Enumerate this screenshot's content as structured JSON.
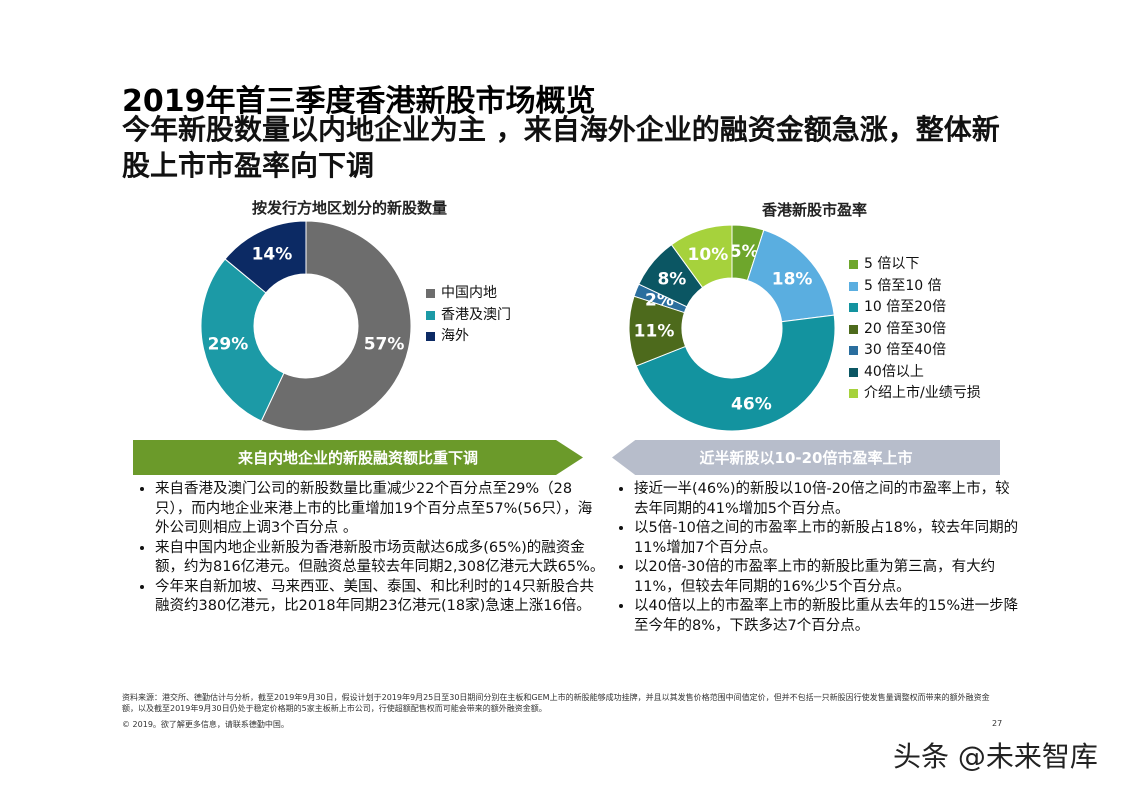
{
  "title": "2019年首三季度香港新股市场概览",
  "subtitle": "今年新股数量以内地企业为主 ，来自海外企业的融资金额急涨，整体新股上市市盈率向下调",
  "chart_data": [
    {
      "type": "pie",
      "donut": true,
      "title": "按发行方地区划分的新股数量",
      "legend_position": "right",
      "categories": [
        "中国内地",
        "香港及澳门",
        "海外"
      ],
      "values": [
        57,
        29,
        14
      ],
      "labels": [
        "57%",
        "29%",
        "14%"
      ],
      "colors": [
        "#6d6d6d",
        "#1c9aa6",
        "#0c2a64"
      ]
    },
    {
      "type": "pie",
      "donut": true,
      "title": "香港新股市盈率",
      "legend_position": "right",
      "categories": [
        "5 倍以下",
        "5 倍至10 倍",
        "10 倍至20倍",
        "20 倍至30倍",
        "30 倍至40倍",
        "40倍以上",
        "介绍上市/业绩亏损"
      ],
      "values": [
        5,
        18,
        46,
        11,
        2,
        8,
        10
      ],
      "labels": [
        "5%",
        "18%",
        "46%",
        "11%",
        "2%",
        "8%",
        "10%"
      ],
      "colors": [
        "#6ea62c",
        "#5aaee0",
        "#13939f",
        "#4d6a1c",
        "#2a6e9e",
        "#0b5663",
        "#a6d23c"
      ]
    }
  ],
  "banners": {
    "left": "来自内地企业的新股融资额比重下调",
    "right": "近半新股以10-20倍市盈率上市"
  },
  "left_bullets": [
    "来自香港及澳门公司的新股数量比重减少22个百分点至29%（28只），而内地企业来港上市的比重增加19个百分点至57%(56只），海外公司则相应上调3个百分点 。",
    "来自中国内地企业新股为香港新股市场贡献达6成多(65%)的融资金额，约为816亿港元。但融资总量较去年同期2,308亿港元大跌65%。",
    "今年来自新加坡、马来西亚、美国、泰国、和比利时的14只新股合共融资约380亿港元，比2018年同期23亿港元(18家)急速上涨16倍。"
  ],
  "right_bullets": [
    "接近一半(46%)的新股以10倍-20倍之间的市盈率上市，较去年同期的41%增加5个百分点。",
    "以5倍-10倍之间的市盈率上市的新股占18%，较去年同期的11%增加7个百分点。",
    "以20倍-30倍的市盈率上市的新股比重为第三高，有大约11%，但较去年同期的16%少5个百分点。",
    "以40倍以上的市盈率上市的新股比重从去年的15%进一步降至今年的8%，下跌多达7个百分点。"
  ],
  "footer": {
    "source": "资料来源：港交所、德勤估计与分析，截至2019年9月30日，假设计划于2019年9月25日至30日期间分别在主板和GEM上市的新股能够成功挂牌，并且以其发售价格范围中间值定价，但并不包括一只新股因行使发售量调整权而带来的额外融资金额，以及截至2019年9月30日仍处于稳定价格期的5家主板新上市公司，行使超额配售权而可能会带来的额外融资金额。",
    "copyright": "© 2019。欲了解更多信息，请联系德勤中国。",
    "page": "27"
  },
  "watermark": "头条 @未来智库"
}
